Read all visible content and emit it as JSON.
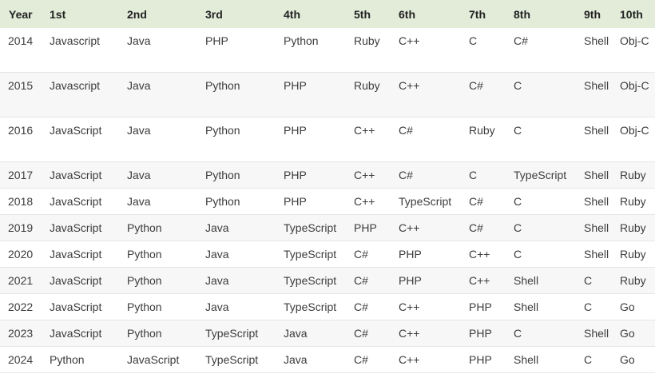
{
  "table": {
    "headers": [
      "Year",
      "1st",
      "2nd",
      "3rd",
      "4th",
      "5th",
      "6th",
      "7th",
      "8th",
      "9th",
      "10th"
    ],
    "rows": [
      [
        "2014",
        "Javascript",
        "Java",
        "PHP",
        "Python",
        "Ruby",
        "C++",
        "C",
        "C#",
        "Shell",
        "Obj-C"
      ],
      [
        "2015",
        "Javascript",
        "Java",
        "Python",
        "PHP",
        "Ruby",
        "C++",
        "C#",
        "C",
        "Shell",
        "Obj-C"
      ],
      [
        "2016",
        "JavaScript",
        "Java",
        "Python",
        "PHP",
        "C++",
        "C#",
        "Ruby",
        "C",
        "Shell",
        "Obj-C"
      ],
      [
        "2017",
        "JavaScript",
        "Java",
        "Python",
        "PHP",
        "C++",
        "C#",
        "C",
        "TypeScript",
        "Shell",
        "Ruby"
      ],
      [
        "2018",
        "JavaScript",
        "Java",
        "Python",
        "PHP",
        "C++",
        "TypeScript",
        "C#",
        "C",
        "Shell",
        "Ruby"
      ],
      [
        "2019",
        "JavaScript",
        "Python",
        "Java",
        "TypeScript",
        "PHP",
        "C++",
        "C#",
        "C",
        "Shell",
        "Ruby"
      ],
      [
        "2020",
        "JavaScript",
        "Python",
        "Java",
        "TypeScript",
        "C#",
        "PHP",
        "C++",
        "C",
        "Shell",
        "Ruby"
      ],
      [
        "2021",
        "JavaScript",
        "Python",
        "Java",
        "TypeScript",
        "C#",
        "PHP",
        "C++",
        "Shell",
        "C",
        "Ruby"
      ],
      [
        "2022",
        "JavaScript",
        "Python",
        "Java",
        "TypeScript",
        "C#",
        "C++",
        "PHP",
        "Shell",
        "C",
        "Go"
      ],
      [
        "2023",
        "JavaScript",
        "Python",
        "TypeScript",
        "Java",
        "C#",
        "C++",
        "PHP",
        "C",
        "Shell",
        "Go"
      ],
      [
        "2024",
        "Python",
        "JavaScript",
        "TypeScript",
        "Java",
        "C#",
        "C++",
        "PHP",
        "Shell",
        "C",
        "Go"
      ]
    ]
  }
}
